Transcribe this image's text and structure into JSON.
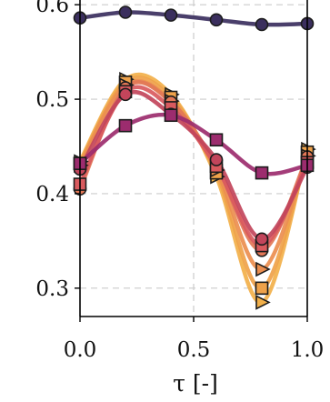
{
  "chart_data": {
    "type": "line",
    "xlabel": "τ [-]",
    "ylabel": "",
    "xlim": [
      0.0,
      1.0
    ],
    "ylim": [
      0.27,
      0.605
    ],
    "x_ticks": [
      0.0,
      0.5,
      1.0
    ],
    "x_tick_labels": [
      "0.0",
      "0.5",
      "1.0"
    ],
    "y_ticks": [
      0.3,
      0.4,
      0.5,
      0.6
    ],
    "y_tick_labels": [
      "0.3",
      "0.4",
      "0.5",
      "0.6"
    ],
    "grid": true,
    "x": [
      0.0,
      0.2,
      0.4,
      0.6,
      0.8,
      1.0
    ],
    "series": [
      {
        "color": "#3b2f5e",
        "marker": "circle",
        "values": [
          0.586,
          0.592,
          0.589,
          0.584,
          0.579,
          0.58
        ]
      },
      {
        "color": "#9c2c6e",
        "marker": "square",
        "values": [
          0.432,
          0.472,
          0.483,
          0.457,
          0.422,
          0.43
        ]
      },
      {
        "color": "#c2455b",
        "marker": "circle",
        "values": [
          0.426,
          0.505,
          0.484,
          0.436,
          0.352,
          0.428
        ]
      },
      {
        "color": "#d95a5e",
        "marker": "square",
        "values": [
          0.41,
          0.508,
          0.491,
          0.429,
          0.345,
          0.433
        ]
      },
      {
        "color": "#e27756",
        "marker": "circle",
        "values": [
          0.405,
          0.512,
          0.497,
          0.43,
          0.34,
          0.439
        ]
      },
      {
        "color": "#eb8e4f",
        "marker": "triangle",
        "values": [
          0.43,
          0.515,
          0.498,
          0.425,
          0.32,
          0.44
        ]
      },
      {
        "color": "#efa24a",
        "marker": "square",
        "values": [
          0.432,
          0.518,
          0.502,
          0.422,
          0.3,
          0.444
        ]
      },
      {
        "color": "#f2b04a",
        "marker": "triangle",
        "values": [
          0.434,
          0.521,
          0.505,
          0.418,
          0.285,
          0.447
        ]
      }
    ]
  }
}
